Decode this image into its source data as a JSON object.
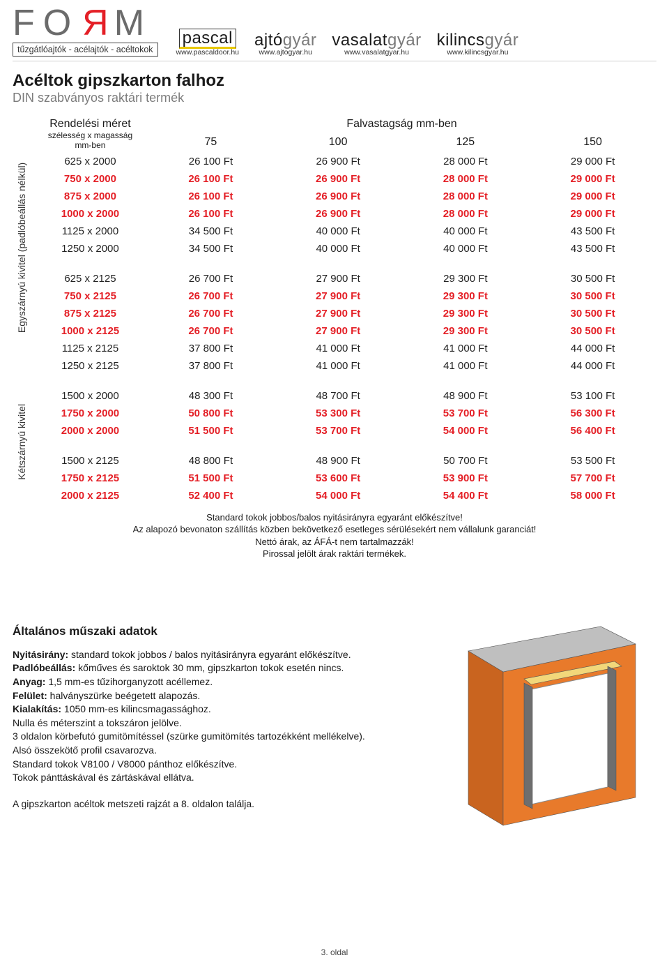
{
  "header": {
    "form_letters": [
      "F",
      "O",
      "R",
      "M"
    ],
    "form_sub": "tűzgátlóajtók - acélajtók - acéltokok",
    "pascal": {
      "name": "pascal",
      "url": "www.pascaldoor.hu"
    },
    "ajtogyar": {
      "bold": "ajtó",
      "grey": "gyár",
      "url": "www.ajtogyar.hu"
    },
    "vasalat": {
      "bold": "vasalat",
      "grey": "gyár",
      "url": "www.vasalatgyar.hu"
    },
    "kilincs": {
      "bold": "kilincs",
      "grey": "gyár",
      "url": "www.kilincsgyar.hu"
    }
  },
  "title": "Acéltok gipszkarton falhoz",
  "subtitle": "DIN szabványos raktári termék",
  "table": {
    "order_size_label_1": "Rendelési méret",
    "order_size_label_2": "szélesség x magasság",
    "order_size_label_3": "mm-ben",
    "thickness_header": "Falvastagság mm-ben",
    "cols": [
      "75",
      "100",
      "125",
      "150"
    ],
    "side_label_single": "Egyszárnyú kivitel (padlóbeállás nélkül)",
    "side_label_double": "Kétszárnyú kivitel",
    "group1": [
      {
        "size": "625 x 2000",
        "v": [
          "26 100 Ft",
          "26 900 Ft",
          "28 000 Ft",
          "29 000 Ft"
        ],
        "red": false
      },
      {
        "size": "750 x 2000",
        "v": [
          "26 100 Ft",
          "26 900 Ft",
          "28 000 Ft",
          "29 000 Ft"
        ],
        "red": true
      },
      {
        "size": "875 x 2000",
        "v": [
          "26 100 Ft",
          "26 900 Ft",
          "28 000 Ft",
          "29 000 Ft"
        ],
        "red": true
      },
      {
        "size": "1000 x 2000",
        "v": [
          "26 100 Ft",
          "26 900 Ft",
          "28 000 Ft",
          "29 000 Ft"
        ],
        "red": true
      },
      {
        "size": "1125 x 2000",
        "v": [
          "34 500 Ft",
          "40 000 Ft",
          "40 000 Ft",
          "43 500 Ft"
        ],
        "red": false
      },
      {
        "size": "1250 x 2000",
        "v": [
          "34 500 Ft",
          "40 000 Ft",
          "40 000 Ft",
          "43 500 Ft"
        ],
        "red": false
      }
    ],
    "group2": [
      {
        "size": "625 x 2125",
        "v": [
          "26 700 Ft",
          "27 900 Ft",
          "29 300 Ft",
          "30 500 Ft"
        ],
        "red": false
      },
      {
        "size": "750 x 2125",
        "v": [
          "26 700 Ft",
          "27 900 Ft",
          "29 300 Ft",
          "30 500 Ft"
        ],
        "red": true
      },
      {
        "size": "875 x 2125",
        "v": [
          "26 700 Ft",
          "27 900 Ft",
          "29 300 Ft",
          "30 500 Ft"
        ],
        "red": true
      },
      {
        "size": "1000 x 2125",
        "v": [
          "26 700 Ft",
          "27 900 Ft",
          "29 300 Ft",
          "30 500 Ft"
        ],
        "red": true
      },
      {
        "size": "1125 x 2125",
        "v": [
          "37 800 Ft",
          "41 000 Ft",
          "41 000 Ft",
          "44 000 Ft"
        ],
        "red": false
      },
      {
        "size": "1250 x 2125",
        "v": [
          "37 800 Ft",
          "41 000 Ft",
          "41 000 Ft",
          "44 000 Ft"
        ],
        "red": false
      }
    ],
    "group3": [
      {
        "size": "1500 x 2000",
        "v": [
          "48 300 Ft",
          "48 700 Ft",
          "48 900 Ft",
          "53 100 Ft"
        ],
        "red": false
      },
      {
        "size": "1750 x 2000",
        "v": [
          "50 800 Ft",
          "53 300 Ft",
          "53 700 Ft",
          "56 300 Ft"
        ],
        "red": true
      },
      {
        "size": "2000 x 2000",
        "v": [
          "51 500 Ft",
          "53 700 Ft",
          "54 000 Ft",
          "56 400 Ft"
        ],
        "red": true
      }
    ],
    "group4": [
      {
        "size": "1500 x 2125",
        "v": [
          "48 800 Ft",
          "48 900 Ft",
          "50 700 Ft",
          "53 500 Ft"
        ],
        "red": false
      },
      {
        "size": "1750 x 2125",
        "v": [
          "51 500 Ft",
          "53 600 Ft",
          "53 900 Ft",
          "57 700 Ft"
        ],
        "red": true
      },
      {
        "size": "2000 x 2125",
        "v": [
          "52 400 Ft",
          "54 000 Ft",
          "54 400 Ft",
          "58 000 Ft"
        ],
        "red": true
      }
    ]
  },
  "notes": [
    "Standard tokok jobbos/balos nyitásirányra egyaránt előkészítve!",
    "Az alapozó bevonaton szállítás közben bekövetkező esetleges sérülésekért nem vállalunk garanciát!",
    "Nettó árak, az ÁFÁ-t nem tartalmazzák!",
    "Pirossal jelölt árak raktári termékek."
  ],
  "tech": {
    "title": "Általános műszaki adatok",
    "lines": [
      {
        "b": "Nyitásirány:",
        "t": " standard tokok jobbos / balos nyitásirányra egyaránt előkészítve."
      },
      {
        "b": "Padlóbeállás:",
        "t": " kőműves és saroktok 30 mm, gipszkarton tokok esetén nincs."
      },
      {
        "b": "Anyag:",
        "t": " 1,5 mm-es tűzihorganyzott acéllemez."
      },
      {
        "b": "Felület:",
        "t": " halványszürke beégetett alapozás."
      },
      {
        "b": "Kialakítás:",
        "t": " 1050 mm-es kilincsmagassághoz."
      },
      {
        "b": "",
        "t": "Nulla és méterszint a tokszáron jelölve."
      },
      {
        "b": "",
        "t": "3 oldalon körbefutó gumitömítéssel (szürke gumitömítés tartozékként mellékelve)."
      },
      {
        "b": "",
        "t": "Alsó összekötő profil csavarozva."
      },
      {
        "b": "",
        "t": "Standard tokok V8100 / V8000 pánthoz előkészítve."
      },
      {
        "b": "",
        "t": "Tokok pánttáskával és zártáskával ellátva."
      }
    ],
    "closing": "A gipszkarton acéltok metszeti rajzát a 8. oldalon találja.",
    "colors": {
      "wall_front": "#e87a2b",
      "wall_side": "#c9641f",
      "panel": "#f2d77a",
      "frame": "#6e6e6e",
      "concrete": "#bfbfbf"
    }
  },
  "page_number": "3. oldal"
}
